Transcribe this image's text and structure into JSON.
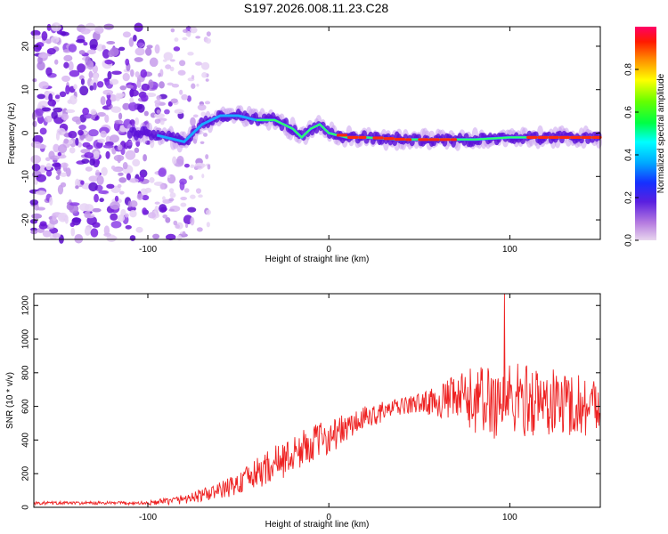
{
  "figure": {
    "title": "S197.2026.008.11.23.C28"
  },
  "chart_data": [
    {
      "type": "heatmap",
      "title": "S197.2026.008.11.23.C28",
      "xlabel": "Height of straight line (km)",
      "ylabel": "Frequency (Hz)",
      "xlim": [
        -163,
        150
      ],
      "ylim": [
        -24.5,
        24.5
      ],
      "x_ticks": [
        -100,
        0,
        100
      ],
      "y_ticks": [
        20,
        10,
        0,
        -10,
        -20
      ],
      "colorbar": {
        "label": "Normalized spectral amplitude",
        "range": [
          0,
          1
        ],
        "ticks": [
          0.0,
          0.2,
          0.4,
          0.6,
          0.8
        ]
      },
      "ridge": {
        "description": "dominant frequency vs height",
        "points": [
          [
            -110,
            0
          ],
          [
            -100,
            0
          ],
          [
            -90,
            -1
          ],
          [
            -80,
            -2
          ],
          [
            -70,
            2
          ],
          [
            -60,
            4
          ],
          [
            -50,
            4
          ],
          [
            -40,
            3
          ],
          [
            -30,
            3
          ],
          [
            -25,
            2
          ],
          [
            -20,
            1
          ],
          [
            -15,
            -1
          ],
          [
            -10,
            1
          ],
          [
            -5,
            2
          ],
          [
            0,
            0
          ],
          [
            10,
            -1
          ],
          [
            20,
            -1
          ],
          [
            40,
            -1.5
          ],
          [
            60,
            -1.5
          ],
          [
            80,
            -1.5
          ],
          [
            100,
            -1
          ],
          [
            120,
            -1
          ],
          [
            150,
            -1
          ]
        ],
        "peak_segments": [
          [
            5,
            20
          ],
          [
            25,
            45
          ],
          [
            50,
            70
          ],
          [
            110,
            150
          ]
        ]
      }
    },
    {
      "type": "line",
      "xlabel": "Height of straight line (km)",
      "ylabel": "SNR (10 * v/v)",
      "xlim": [
        -163,
        150
      ],
      "ylim": [
        0,
        1270
      ],
      "x_ticks": [
        -100,
        0,
        100
      ],
      "y_ticks": [
        0,
        200,
        400,
        600,
        800,
        1000,
        1200
      ],
      "series": [
        {
          "name": "SNR",
          "color": "#ee2222",
          "envelope_x": [
            -163,
            -140,
            -120,
            -100,
            -90,
            -80,
            -70,
            -60,
            -50,
            -40,
            -30,
            -20,
            -10,
            0,
            10,
            20,
            30,
            40,
            50,
            60,
            70,
            80,
            90,
            100,
            110,
            120,
            130,
            140,
            150
          ],
          "envelope_mean": [
            25,
            25,
            25,
            25,
            35,
            50,
            70,
            100,
            140,
            200,
            260,
            310,
            380,
            420,
            470,
            530,
            570,
            600,
            620,
            630,
            640,
            640,
            630,
            640,
            640,
            620,
            620,
            610,
            600
          ],
          "envelope_spread": [
            10,
            10,
            10,
            12,
            20,
            30,
            40,
            50,
            70,
            90,
            110,
            110,
            110,
            100,
            90,
            70,
            60,
            50,
            60,
            90,
            150,
            200,
            230,
            230,
            220,
            210,
            200,
            190,
            180
          ],
          "peak": {
            "x": 97,
            "y": 1270
          }
        }
      ]
    }
  ]
}
